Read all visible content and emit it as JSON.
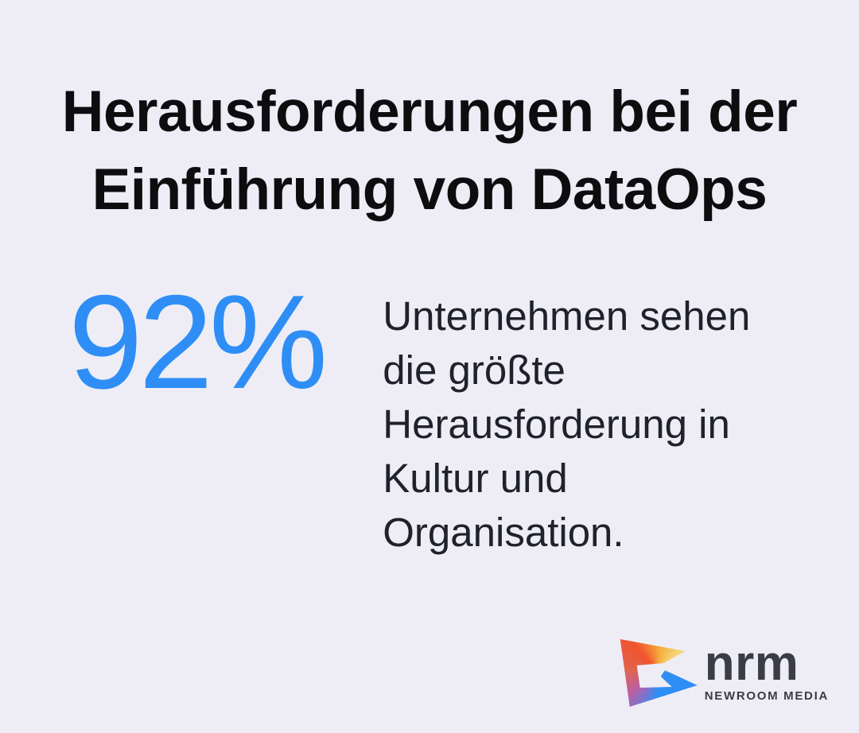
{
  "colors": {
    "background": "#EEEDF6",
    "title_text": "#0D0D10",
    "accent_blue": "#2E8EF6",
    "body_text": "#20222B",
    "logo_text": "#3A3D45",
    "icon_orange_red": "#F1542D",
    "icon_gold": "#F5A83B",
    "icon_yellow": "#F6D878",
    "icon_blue": "#2E8EF6",
    "icon_pink": "#BA5FA5",
    "icon_coral": "#DF6450"
  },
  "title": {
    "text": "Herausforderungen bei der Einführung von DataOps",
    "lines": [
      "Herausforderungen bei der",
      "Einführung von DataOps"
    ]
  },
  "stat": {
    "value": "92%",
    "description": "Unternehmen sehen die größte Herausforderung in Kultur und Organisation.",
    "description_lines": [
      "Unternehmen sehen",
      "die größte",
      "Herausforderung in",
      "Kultur und",
      "Organisation."
    ]
  },
  "logo": {
    "icon": "newroom-media-mark-icon",
    "name": "nrm",
    "subtitle": "NEWROOM MEDIA"
  }
}
